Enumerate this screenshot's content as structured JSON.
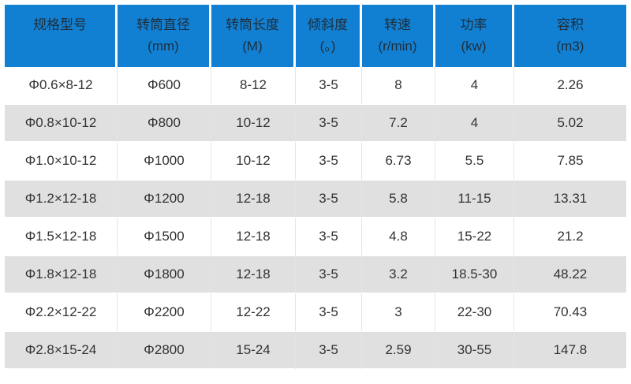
{
  "colors": {
    "header_bg": "#1280d2",
    "header_text": "#1f2d3a",
    "row_bg": "#ffffff",
    "row_alt_bg": "#e0e0e0",
    "body_text": "#333333",
    "grid_line": "#e4e4e4"
  },
  "chart_data": {
    "type": "table",
    "title": "",
    "legend": null,
    "columns": [
      {
        "label": "规格型号",
        "unit": ""
      },
      {
        "label": "转筒直径",
        "unit": "(mm)"
      },
      {
        "label": "转筒长度",
        "unit": "(M)"
      },
      {
        "label": "倾斜度",
        "unit": "(。)"
      },
      {
        "label": "转速",
        "unit": "(r/min)"
      },
      {
        "label": "功率",
        "unit": "(kw)"
      },
      {
        "label": "容积",
        "unit": "(m3)"
      }
    ],
    "rows": [
      [
        "Φ0.6×8-12",
        "Φ600",
        "8-12",
        "3-5",
        "8",
        "4",
        "2.26"
      ],
      [
        "Φ0.8×10-12",
        "Φ800",
        "10-12",
        "3-5",
        "7.2",
        "4",
        "5.02"
      ],
      [
        "Φ1.0×10-12",
        "Φ1000",
        "10-12",
        "3-5",
        "6.73",
        "5.5",
        "7.85"
      ],
      [
        "Φ1.2×12-18",
        "Φ1200",
        "12-18",
        "3-5",
        "5.8",
        "11-15",
        "13.31"
      ],
      [
        "Φ1.5×12-18",
        "Φ1500",
        "12-18",
        "3-5",
        "4.8",
        "15-22",
        "21.2"
      ],
      [
        "Φ1.8×12-18",
        "Φ1800",
        "12-18",
        "3-5",
        "3.2",
        "18.5-30",
        "48.22"
      ],
      [
        "Φ2.2×12-22",
        "Φ2200",
        "12-22",
        "3-5",
        "3",
        "22-30",
        "70.43"
      ],
      [
        "Φ2.8×15-24",
        "Φ2800",
        "15-24",
        "3-5",
        "2.59",
        "30-55",
        "147.8"
      ]
    ]
  }
}
